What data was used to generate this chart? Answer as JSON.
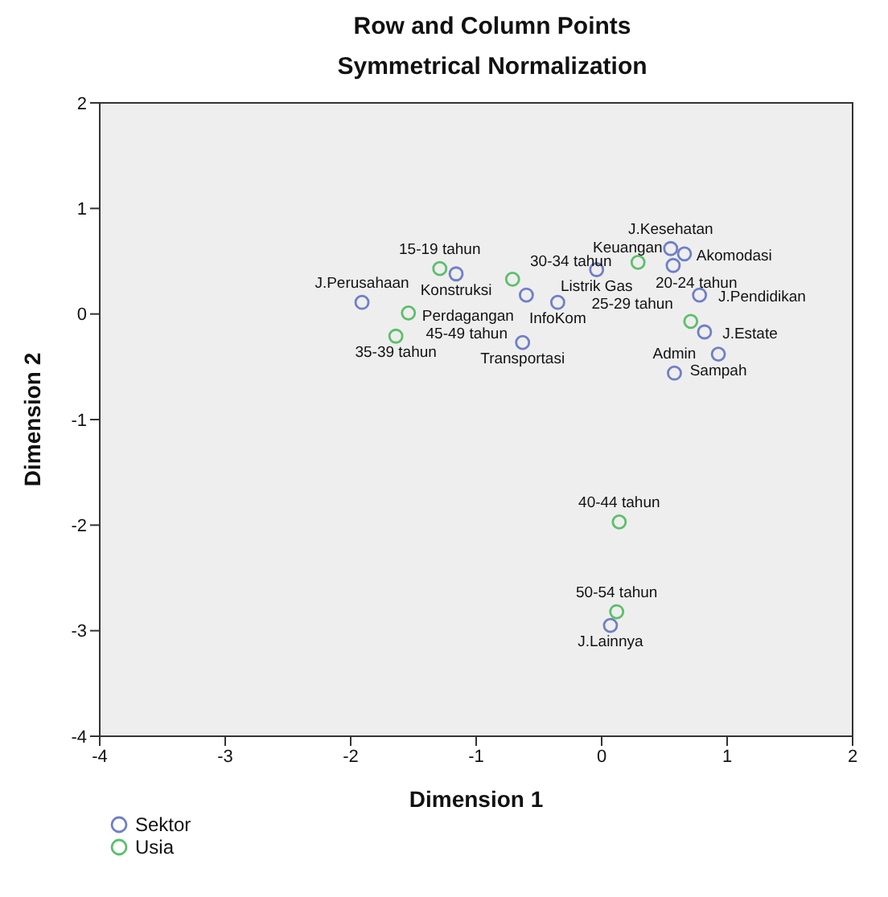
{
  "chart_data": {
    "type": "scatter",
    "title": "Row and Column Points",
    "subtitle": "Symmetrical Normalization",
    "xlabel": "Dimension 1",
    "ylabel": "Dimension 2",
    "xlim": [
      -4,
      2
    ],
    "xticks": [
      -4,
      -3,
      -2,
      -1,
      0,
      1,
      2
    ],
    "ylim": [
      -4,
      2
    ],
    "yticks": [
      -4,
      -3,
      -2,
      -1,
      0,
      1,
      2
    ],
    "legend": "bottom left",
    "marker": "circle",
    "series": [
      {
        "name": "Sektor",
        "color": "#6f7fc7",
        "x": [
          -1.91,
          -1.16,
          -0.6,
          -0.35,
          -0.63,
          -0.04,
          0.57,
          0.66,
          0.55,
          0.78,
          0.82,
          0.93,
          0.58,
          0.07
        ],
        "values": [
          0.11,
          0.38,
          0.18,
          0.11,
          -0.27,
          0.42,
          0.46,
          0.57,
          0.62,
          0.18,
          -0.17,
          -0.38,
          -0.56,
          -2.95
        ]
      },
      {
        "name": "Usia",
        "color": "#5cbf6a",
        "x": [
          -1.29,
          -1.54,
          -1.64,
          -0.71,
          0.29,
          0.71,
          0.14,
          0.12
        ],
        "values": [
          0.43,
          0.01,
          -0.21,
          0.33,
          0.49,
          -0.07,
          -1.97,
          -2.82
        ]
      }
    ],
    "annotations": [
      {
        "text": "J.Perusahaan",
        "x": -1.91,
        "y": 0.11
      },
      {
        "text": "Konstruksi",
        "x": -1.16,
        "y": 0.38
      },
      {
        "text": "Perdagangan",
        "x": -0.6,
        "y": 0.18
      },
      {
        "text": "InfoKom",
        "x": -0.35,
        "y": 0.11
      },
      {
        "text": "Transportasi",
        "x": -0.63,
        "y": -0.27
      },
      {
        "text": "Listrik Gas",
        "x": -0.04,
        "y": 0.42
      },
      {
        "text": "Keuangan",
        "x": 0.57,
        "y": 0.46
      },
      {
        "text": "Akomodasi",
        "x": 0.66,
        "y": 0.57
      },
      {
        "text": "J.Kesehatan",
        "x": 0.55,
        "y": 0.62
      },
      {
        "text": "J.Pendidikan",
        "x": 0.78,
        "y": 0.18
      },
      {
        "text": "J.Estate",
        "x": 0.82,
        "y": -0.17
      },
      {
        "text": "Sampah",
        "x": 0.93,
        "y": -0.38
      },
      {
        "text": "Admin",
        "x": 0.58,
        "y": -0.56
      },
      {
        "text": "J.Lainnya",
        "x": 0.07,
        "y": -2.95
      },
      {
        "text": "15-19 tahun",
        "x": -1.29,
        "y": 0.43
      },
      {
        "text": "45-49 tahun",
        "x": -1.54,
        "y": 0.01
      },
      {
        "text": "35-39 tahun",
        "x": -1.64,
        "y": -0.21
      },
      {
        "text": "30-34 tahun",
        "x": -0.71,
        "y": 0.33
      },
      {
        "text": "20-24 tahun",
        "x": 0.29,
        "y": 0.49
      },
      {
        "text": "25-29 tahun",
        "x": 0.71,
        "y": -0.07
      },
      {
        "text": "40-44 tahun",
        "x": 0.14,
        "y": -1.97
      },
      {
        "text": "50-54 tahun",
        "x": 0.12,
        "y": -2.82
      }
    ]
  }
}
